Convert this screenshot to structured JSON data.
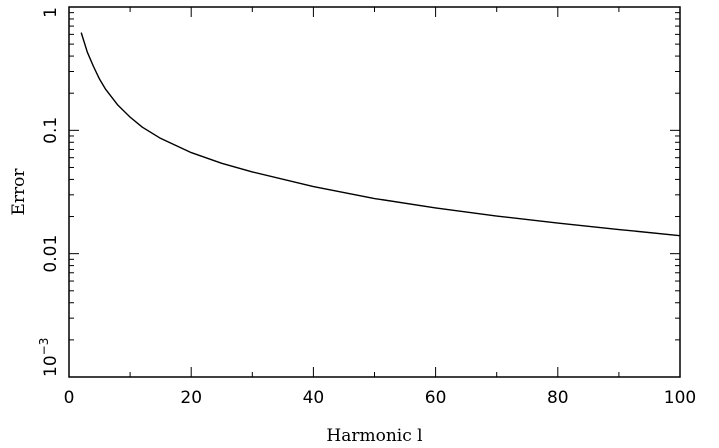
{
  "chart_data": {
    "type": "line",
    "title": "",
    "xlabel": "Harmonic l",
    "ylabel": "Error",
    "xlim": [
      0,
      100
    ],
    "ylim": [
      0.001,
      1
    ],
    "yscale": "log",
    "grid": false,
    "legend": "none",
    "x_tick_labels": [
      "0",
      "20",
      "40",
      "60",
      "80",
      "100"
    ],
    "y_tick_labels": [
      {
        "value": 0.001,
        "base": "10",
        "exponent": "−3"
      },
      {
        "value": 0.01,
        "text": "0.01"
      },
      {
        "value": 0.1,
        "text": "0.1"
      },
      {
        "value": 1,
        "text": "1"
      }
    ],
    "series": [
      {
        "color": "#000000",
        "x": [
          2,
          3,
          4,
          5,
          6,
          8,
          10,
          12,
          15,
          20,
          25,
          30,
          40,
          50,
          60,
          70,
          80,
          90,
          100
        ],
        "y": [
          0.62,
          0.43,
          0.33,
          0.26,
          0.215,
          0.16,
          0.128,
          0.106,
          0.086,
          0.066,
          0.054,
          0.046,
          0.035,
          0.028,
          0.0235,
          0.0202,
          0.0177,
          0.0157,
          0.014
        ]
      }
    ]
  }
}
